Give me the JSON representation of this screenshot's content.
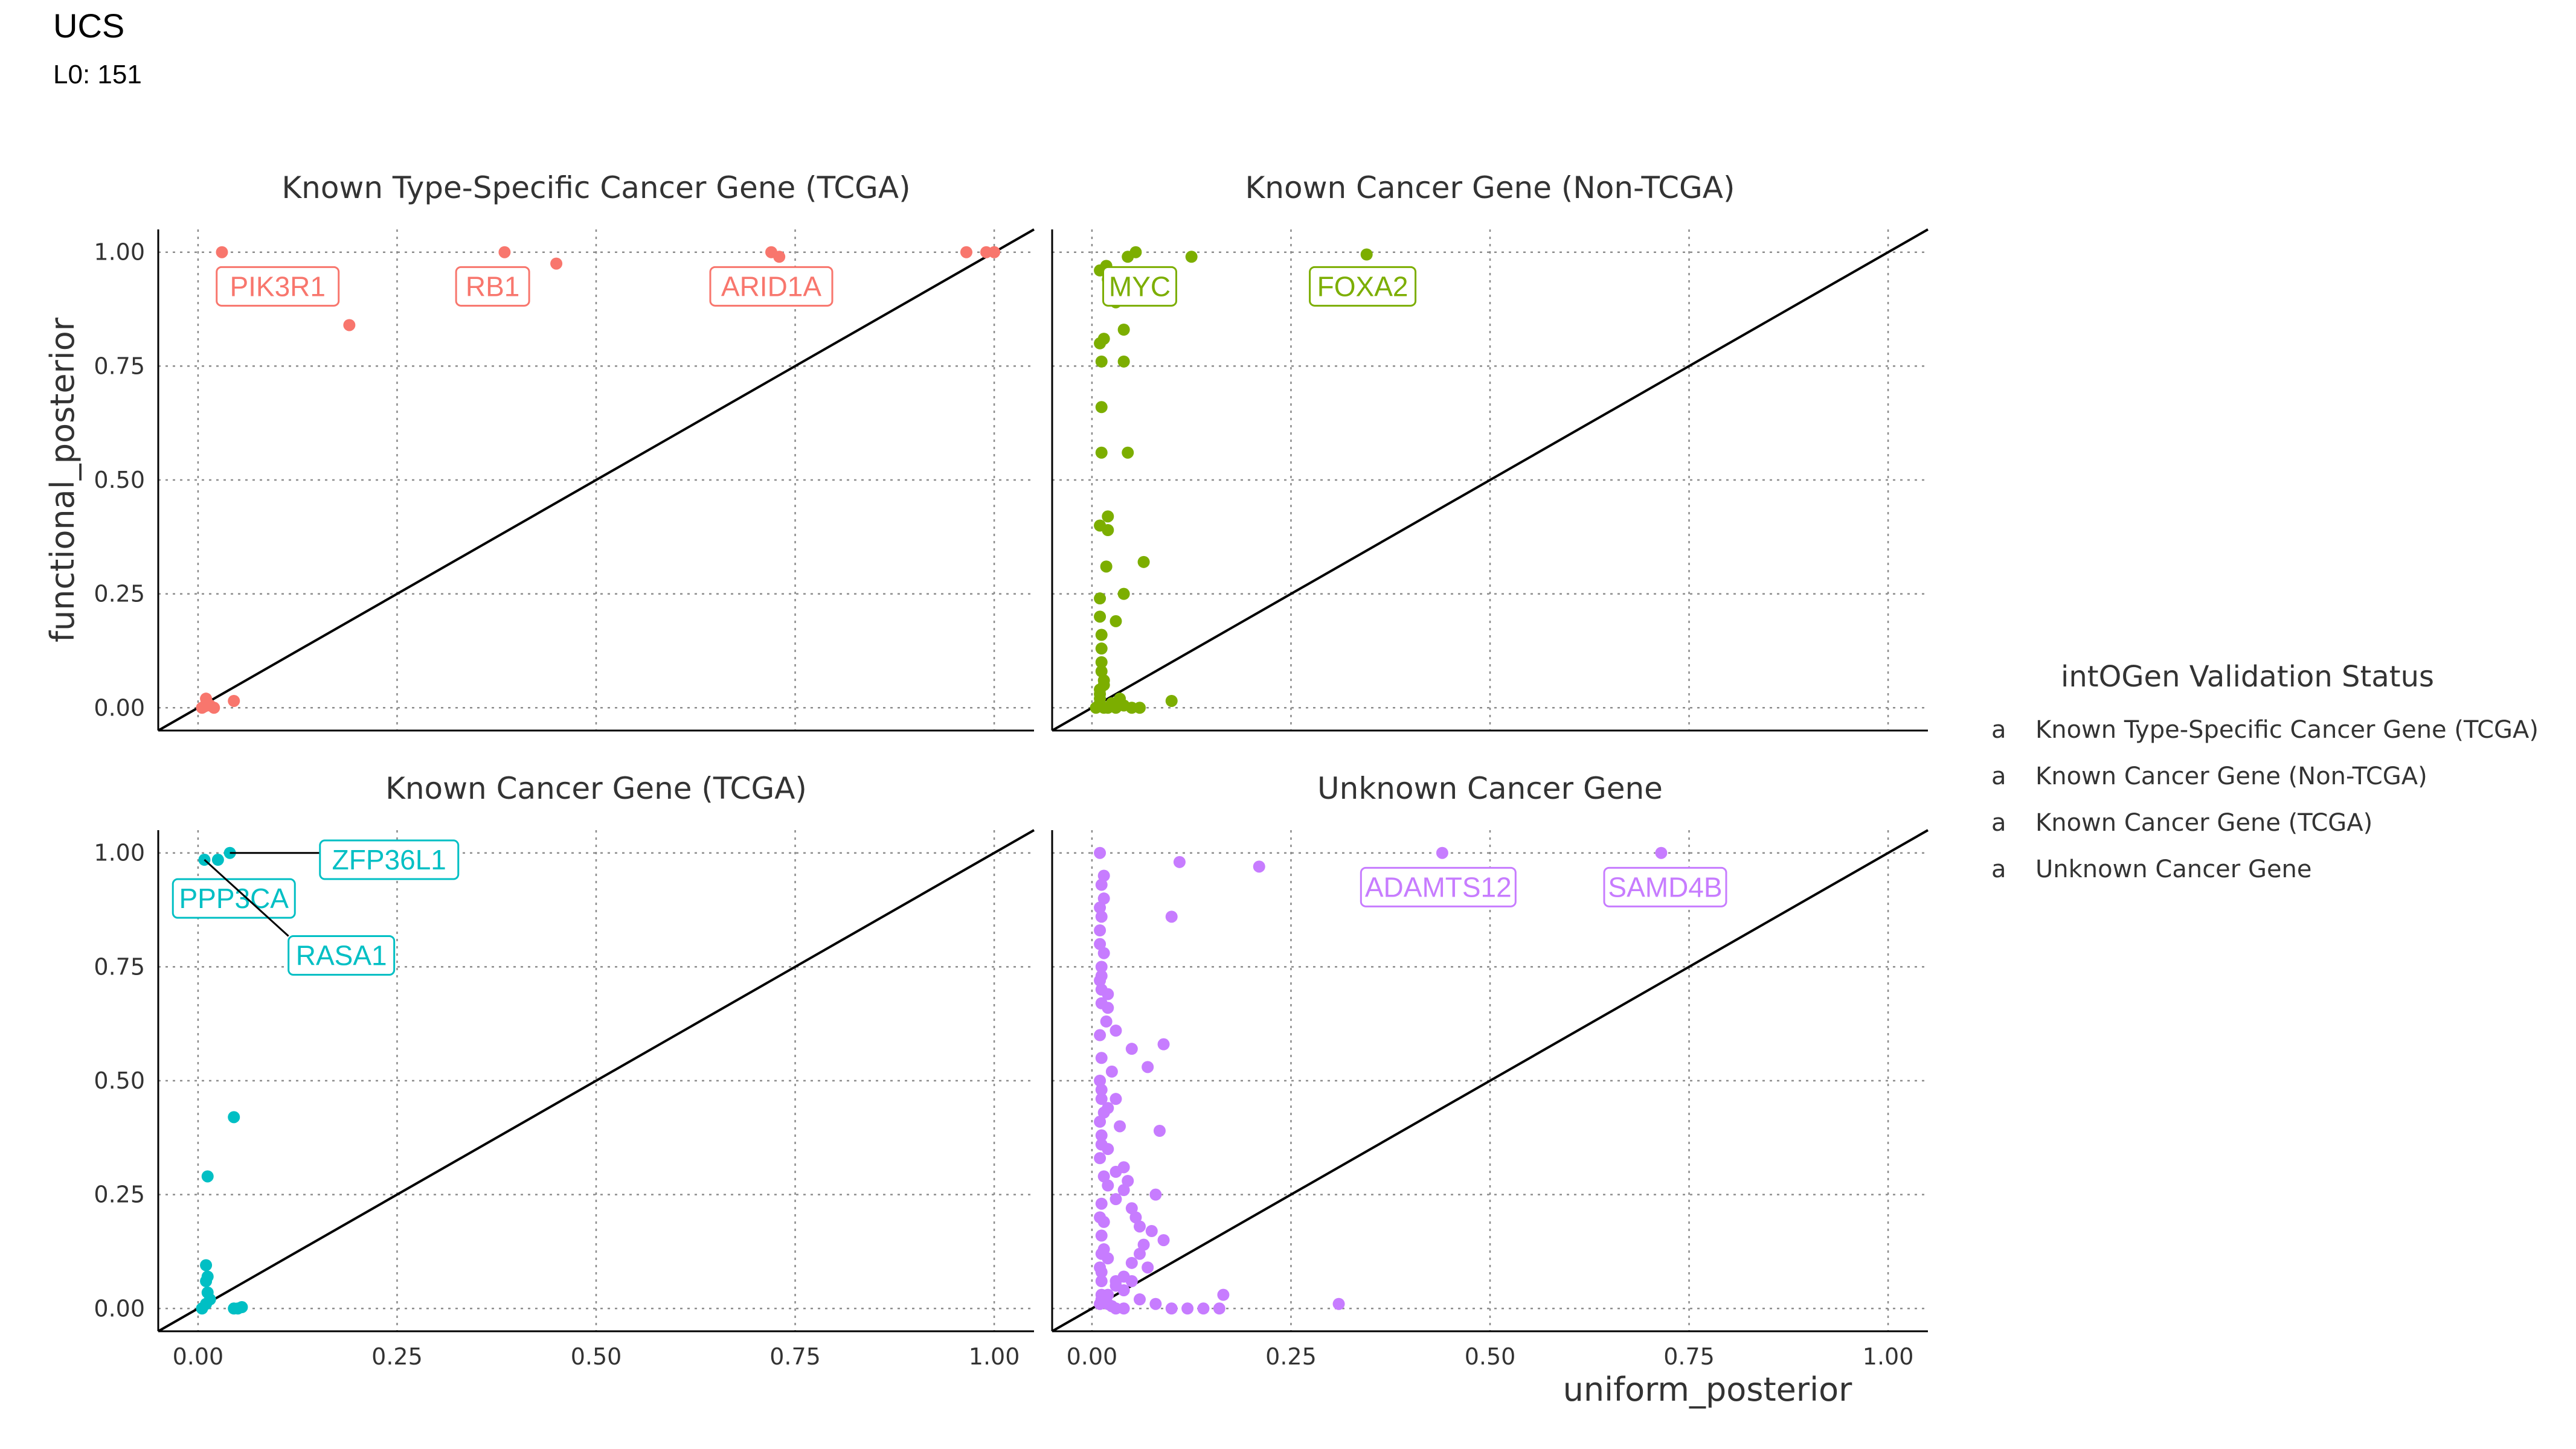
{
  "header": {
    "title": "UCS",
    "subtitle": "L0: 151"
  },
  "colors": {
    "Known Type-Specific Cancer Gene (TCGA)": "#F8766D",
    "Known Cancer Gene (Non-TCGA)": "#7CAE00",
    "Known Cancer Gene (TCGA)": "#00BFC4",
    "Unknown Cancer Gene": "#C77CFF"
  },
  "chart_data": {
    "type": "scatter",
    "xlabel": "uniform_posterior",
    "ylabel": "functional_posterior",
    "xlim": [
      -0.05,
      1.05
    ],
    "ylim": [
      -0.05,
      1.05
    ],
    "x_ticks": [
      "0.00",
      "0.25",
      "0.50",
      "0.75",
      "1.00"
    ],
    "y_ticks": [
      "0.00",
      "0.25",
      "0.50",
      "0.75",
      "1.00"
    ],
    "grid": true,
    "reference_line": "y = x",
    "legend": {
      "title": "intOGen Validation Status",
      "placement": "right",
      "glyph": "a",
      "entries": [
        "Known Type-Specific Cancer Gene (TCGA)",
        "Known Cancer Gene (Non-TCGA)",
        "Known Cancer Gene (TCGA)",
        "Unknown Cancer Gene"
      ]
    },
    "facets": [
      {
        "name": "Known Type-Specific Cancer Gene (TCGA)",
        "x": [
          0.03,
          0.385,
          0.45,
          0.19,
          0.72,
          0.73,
          0.965,
          0.99,
          1.0,
          0.005,
          0.01,
          0.015,
          0.02,
          0.012,
          0.045,
          0.008
        ],
        "y": [
          1.0,
          1.0,
          0.975,
          0.84,
          1.0,
          0.99,
          1.0,
          1.0,
          1.0,
          0.0,
          0.02,
          0.005,
          0.0,
          0.01,
          0.015,
          0.003
        ],
        "labels": [
          {
            "text": "PIK3R1",
            "x": 0.03,
            "y": 1.0,
            "lx": 0.1,
            "ly": 0.925
          },
          {
            "text": "RB1",
            "x": 0.385,
            "y": 1.0,
            "lx": 0.37,
            "ly": 0.925
          },
          {
            "text": "ARID1A",
            "x": 0.72,
            "y": 1.0,
            "lx": 0.72,
            "ly": 0.925
          }
        ]
      },
      {
        "name": "Known Cancer Gene (Non-TCGA)",
        "x": [
          0.018,
          0.045,
          0.055,
          0.125,
          0.345,
          0.01,
          0.02,
          0.03,
          0.015,
          0.01,
          0.04,
          0.012,
          0.04,
          0.012,
          0.045,
          0.012,
          0.02,
          0.01,
          0.02,
          0.065,
          0.018,
          0.04,
          0.01,
          0.01,
          0.03,
          0.012,
          0.012,
          0.012,
          0.012,
          0.015,
          0.015,
          0.01,
          0.01,
          0.01,
          0.01,
          0.02,
          0.025,
          0.03,
          0.04,
          0.05,
          0.06,
          0.035,
          0.1,
          0.015,
          0.005
        ],
        "y": [
          0.97,
          0.99,
          1.0,
          0.99,
          0.995,
          0.96,
          0.94,
          0.89,
          0.81,
          0.8,
          0.83,
          0.76,
          0.76,
          0.66,
          0.56,
          0.56,
          0.42,
          0.4,
          0.39,
          0.32,
          0.31,
          0.25,
          0.24,
          0.2,
          0.19,
          0.16,
          0.13,
          0.1,
          0.08,
          0.06,
          0.05,
          0.04,
          0.03,
          0.02,
          0.01,
          0.0,
          0.01,
          0.0,
          0.005,
          0.0,
          0.0,
          0.02,
          0.015,
          0.0,
          0.0
        ],
        "labels": [
          {
            "text": "MYC",
            "x": 0.018,
            "y": 0.97,
            "lx": 0.06,
            "ly": 0.925
          },
          {
            "text": "FOXA2",
            "x": 0.345,
            "y": 0.995,
            "lx": 0.34,
            "ly": 0.925
          }
        ]
      },
      {
        "name": "Known Cancer Gene (TCGA)",
        "x": [
          0.008,
          0.025,
          0.04,
          0.045,
          0.012,
          0.01,
          0.012,
          0.01,
          0.012,
          0.015,
          0.01,
          0.005,
          0.05,
          0.045,
          0.055
        ],
        "y": [
          0.985,
          0.985,
          1.0,
          0.42,
          0.29,
          0.095,
          0.07,
          0.06,
          0.035,
          0.02,
          0.01,
          0.0,
          0.0,
          0.0,
          0.003
        ],
        "labels": [
          {
            "text": "ZFP36L1",
            "x": 0.04,
            "y": 1.0,
            "lx": 0.24,
            "ly": 0.985
          },
          {
            "text": "PPP3CA",
            "x": 0.025,
            "y": 0.985,
            "lx": 0.045,
            "ly": 0.9
          },
          {
            "text": "RASA1",
            "x": 0.008,
            "y": 0.985,
            "lx": 0.18,
            "ly": 0.775
          }
        ]
      },
      {
        "name": "Unknown Cancer Gene",
        "x": [
          0.44,
          0.715,
          0.21,
          0.31,
          0.165,
          0.11,
          0.1,
          0.09,
          0.085,
          0.08,
          0.075,
          0.06,
          0.07,
          0.05,
          0.04,
          0.03,
          0.02,
          0.015,
          0.01,
          0.01,
          0.012,
          0.018,
          0.025,
          0.035,
          0.045,
          0.055,
          0.065,
          0.05,
          0.04,
          0.03,
          0.02,
          0.012,
          0.015,
          0.02,
          0.025,
          0.03,
          0.04,
          0.012,
          0.01,
          0.012,
          0.02,
          0.03,
          0.05,
          0.07,
          0.01,
          0.012,
          0.015,
          0.012,
          0.01,
          0.02,
          0.03,
          0.01,
          0.012,
          0.015,
          0.02,
          0.012,
          0.03,
          0.04,
          0.06,
          0.08,
          0.1,
          0.12,
          0.14,
          0.16,
          0.05,
          0.015,
          0.01,
          0.012,
          0.012,
          0.02,
          0.03,
          0.04,
          0.06,
          0.09,
          0.015,
          0.012,
          0.01,
          0.012,
          0.012,
          0.01,
          0.02,
          0.01,
          0.012,
          0.015,
          0.012,
          0.015,
          0.012,
          0.01,
          0.012,
          0.012,
          0.01
        ],
        "y": [
          1.0,
          1.0,
          0.97,
          0.01,
          0.03,
          0.98,
          0.86,
          0.58,
          0.39,
          0.25,
          0.17,
          0.12,
          0.09,
          0.22,
          0.31,
          0.46,
          0.69,
          0.95,
          1.0,
          0.88,
          0.75,
          0.63,
          0.52,
          0.4,
          0.28,
          0.2,
          0.14,
          0.1,
          0.07,
          0.05,
          0.03,
          0.02,
          0.015,
          0.01,
          0.005,
          0.0,
          0.0,
          0.93,
          0.83,
          0.7,
          0.66,
          0.61,
          0.57,
          0.53,
          0.5,
          0.46,
          0.43,
          0.36,
          0.33,
          0.27,
          0.24,
          0.2,
          0.16,
          0.13,
          0.11,
          0.08,
          0.06,
          0.04,
          0.02,
          0.01,
          0.0,
          0.0,
          0.0,
          0.0,
          0.06,
          0.78,
          0.72,
          0.55,
          0.48,
          0.35,
          0.3,
          0.26,
          0.18,
          0.15,
          0.9,
          0.86,
          0.8,
          0.73,
          0.67,
          0.6,
          0.44,
          0.41,
          0.38,
          0.29,
          0.23,
          0.19,
          0.12,
          0.09,
          0.06,
          0.03,
          0.01
        ],
        "labels": [
          {
            "text": "ADAMTS12",
            "x": 0.44,
            "y": 1.0,
            "lx": 0.435,
            "ly": 0.925
          },
          {
            "text": "SAMD4B",
            "x": 0.715,
            "y": 1.0,
            "lx": 0.72,
            "ly": 0.925
          }
        ]
      }
    ]
  }
}
